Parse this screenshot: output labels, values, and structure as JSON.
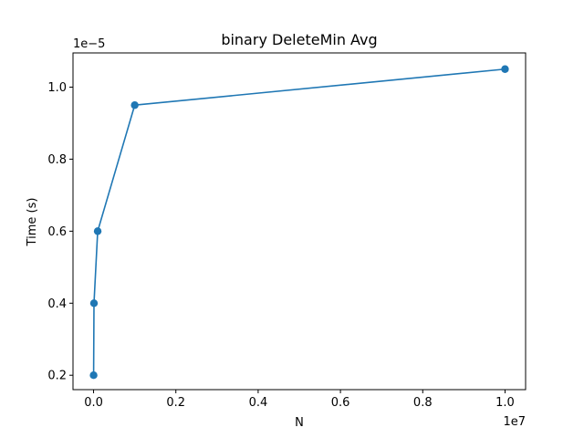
{
  "chart_data": {
    "type": "line",
    "title": "binary DeleteMin Avg",
    "xlabel": "N",
    "ylabel": "Time (s)",
    "x_offset_label": "1e7",
    "y_offset_label": "1e−5",
    "x_scale": 10000000,
    "y_scale": 1e-05,
    "xlim": [
      -500000,
      10500000
    ],
    "ylim": [
      1.6e-06,
      1.095e-05
    ],
    "x_ticks": [
      0,
      2000000,
      4000000,
      6000000,
      8000000,
      10000000
    ],
    "x_tick_labels": [
      "0.0",
      "0.2",
      "0.4",
      "0.6",
      "0.8",
      "1.0"
    ],
    "y_ticks": [
      2e-06,
      4e-06,
      6e-06,
      8e-06,
      1e-05
    ],
    "y_tick_labels": [
      "0.2",
      "0.4",
      "0.6",
      "0.8",
      "1.0"
    ],
    "grid": false,
    "series": [
      {
        "color": "#1f77b4",
        "marker": "circle",
        "x": [
          1000,
          10000,
          100000,
          1000000,
          10000000
        ],
        "y": [
          2e-06,
          4e-06,
          6e-06,
          9.5e-06,
          1.05e-05
        ]
      }
    ]
  }
}
